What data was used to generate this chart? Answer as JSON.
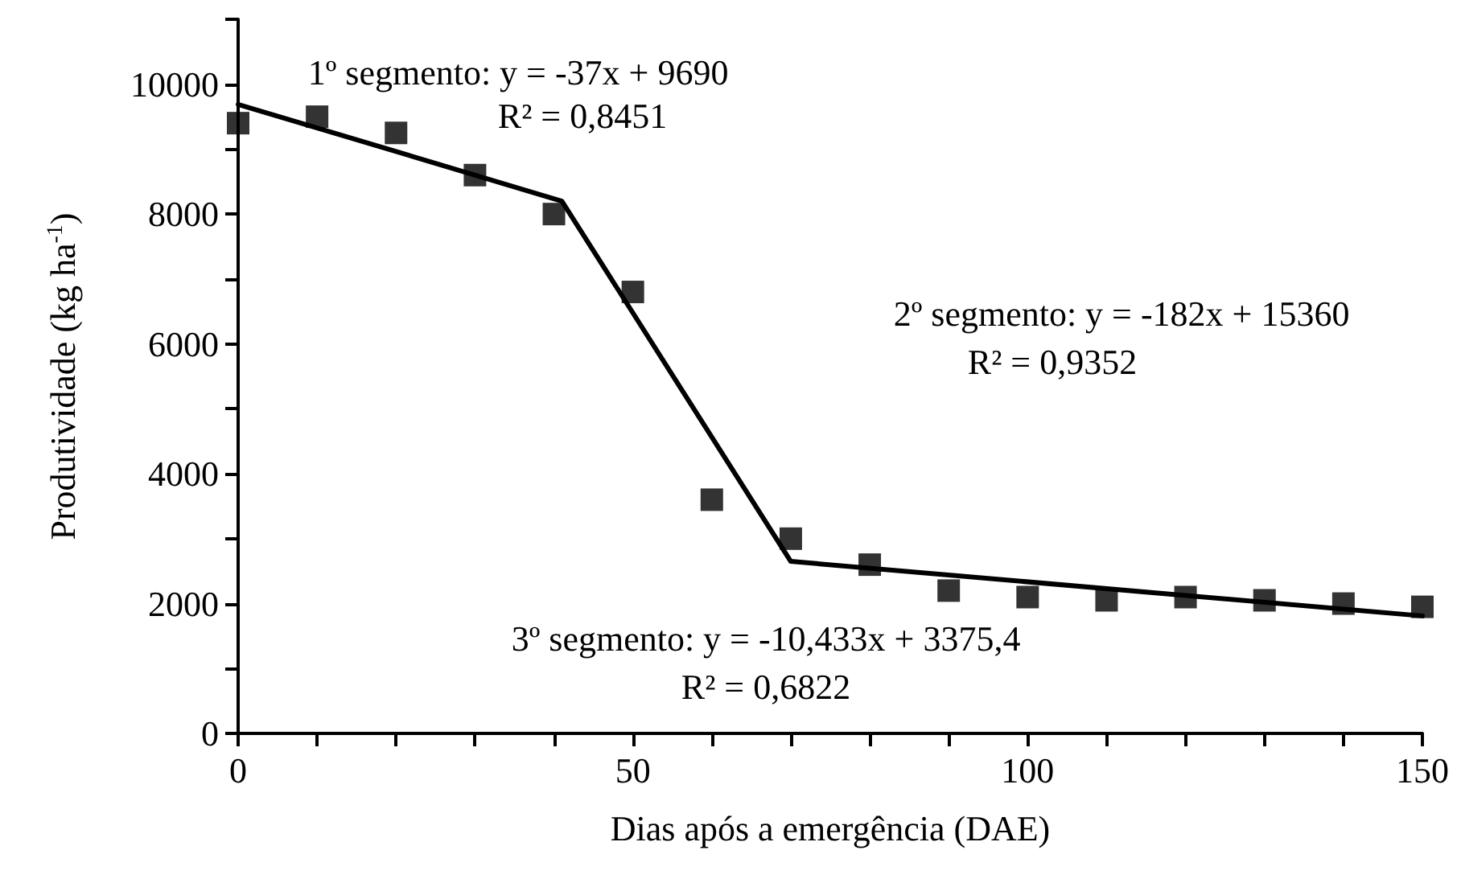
{
  "chart_data": {
    "type": "scatter",
    "xlabel": "Dias após a emergência (DAE)",
    "ylabel": "Produtividade (kg ha$^{-1}$)",
    "x": [
      0,
      10,
      20,
      30,
      40,
      50,
      60,
      70,
      80,
      90,
      100,
      110,
      120,
      130,
      140,
      150
    ],
    "series": [
      {
        "color": "#000000",
        "marker": "square",
        "values": [
          9400,
          9500,
          9250,
          8600,
          8000,
          6800,
          3600,
          3000,
          2600,
          2200,
          2100,
          2050,
          2100,
          2050,
          2000,
          1950
        ]
      },
      {
        "type": "line",
        "color": "#000000",
        "marker": "none",
        "line_style": "solid",
        "x": [
          0,
          41,
          70,
          150
        ],
        "values": [
          9690,
          8200,
          2650,
          1810
        ]
      }
    ],
    "xlim": [
      0,
      150
    ],
    "xticks": [
      0,
      {
        "value": 10,
        "label": null
      },
      {
        "value": 20,
        "label": null
      },
      {
        "value": 30,
        "label": null
      },
      {
        "value": 40,
        "label": null
      },
      50,
      {
        "value": 60,
        "label": null
      },
      {
        "value": 70,
        "label": null
      },
      {
        "value": 80,
        "label": null
      },
      {
        "value": 90,
        "label": null
      },
      100,
      {
        "value": 110,
        "label": null
      },
      {
        "value": 120,
        "label": null
      },
      {
        "value": 130,
        "label": null
      },
      {
        "value": 140,
        "label": null
      },
      150
    ],
    "ylim": [
      0,
      11000
    ],
    "yticks": [
      0,
      {
        "value": 1000,
        "label": null
      },
      2000,
      {
        "value": 3000,
        "label": null
      },
      4000,
      {
        "value": 5000,
        "label": null
      },
      6000,
      {
        "value": 7000,
        "label": null
      },
      8000,
      {
        "value": 9000,
        "label": null
      },
      10000,
      {
        "value": 11000,
        "label": null
      }
    ],
    "grid": false,
    "annotations": [
      "1º segmento: y = -37x + 9690",
      "R² = 0,8451",
      "2º segmento: y = -182x + 15360",
      "R² = 0,9352",
      "3º segmento: y = -10,433x + 3375,4",
      "R² = 0,6822"
    ]
  }
}
